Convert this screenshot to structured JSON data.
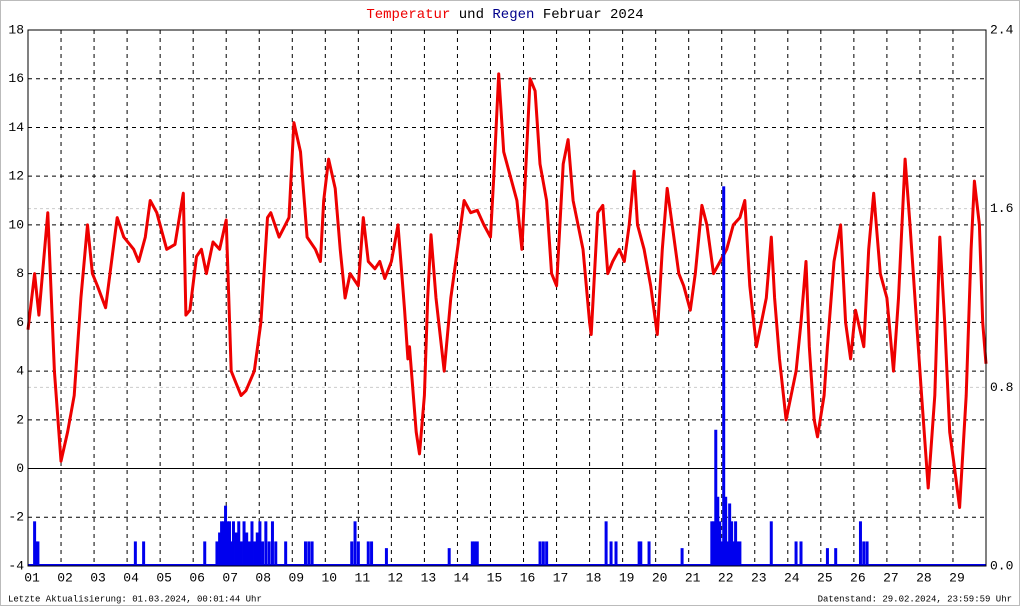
{
  "chart_data": {
    "type": "line",
    "title_connector": "und",
    "title_suffix": "Februar 2024",
    "categories": [
      "01",
      "02",
      "03",
      "04",
      "05",
      "06",
      "07",
      "08",
      "09",
      "10",
      "11",
      "12",
      "13",
      "14",
      "15",
      "16",
      "17",
      "18",
      "19",
      "20",
      "21",
      "22",
      "23",
      "24",
      "25",
      "26",
      "27",
      "28",
      "29"
    ],
    "xlim": [
      1,
      30
    ],
    "ylim": [
      -4,
      18
    ],
    "yticks": [
      -4,
      -2,
      0,
      2,
      4,
      6,
      8,
      10,
      12,
      14,
      16,
      18
    ],
    "y2lim": [
      0,
      2.4
    ],
    "y2ticks": [
      {
        "value": 0,
        "label": "0.0"
      },
      0.8,
      1.6,
      2.4
    ],
    "grid": true,
    "series": [
      {
        "name": "Temperatur",
        "color": "#ee0000",
        "x": [
          1.0,
          1.2,
          1.33,
          1.6,
          1.8,
          2.0,
          2.2,
          2.4,
          2.6,
          2.8,
          2.95,
          3.1,
          3.35,
          3.7,
          3.9,
          4.2,
          4.35,
          4.55,
          4.7,
          4.9,
          5.2,
          5.45,
          5.7,
          5.78,
          5.9,
          6.1,
          6.25,
          6.4,
          6.6,
          6.8,
          7.0,
          7.15,
          7.3,
          7.45,
          7.6,
          7.85,
          8.05,
          8.25,
          8.35,
          8.6,
          8.9,
          9.05,
          9.25,
          9.45,
          9.7,
          9.85,
          9.95,
          10.1,
          10.3,
          10.45,
          10.6,
          10.75,
          11.0,
          11.15,
          11.3,
          11.5,
          11.65,
          11.8,
          12.0,
          12.2,
          12.4,
          12.5,
          12.55,
          12.75,
          12.85,
          13.0,
          13.1,
          13.2,
          13.35,
          13.6,
          13.8,
          13.95,
          14.2,
          14.4,
          14.6,
          14.8,
          15.0,
          15.1,
          15.25,
          15.4,
          15.6,
          15.8,
          15.95,
          16.2,
          16.35,
          16.5,
          16.7,
          16.85,
          17.0,
          17.2,
          17.35,
          17.5,
          17.8,
          18.0,
          18.05,
          18.25,
          18.4,
          18.55,
          18.7,
          18.9,
          19.05,
          19.2,
          19.35,
          19.45,
          19.65,
          19.85,
          20.05,
          20.2,
          20.35,
          20.5,
          20.7,
          20.85,
          21.05,
          21.2,
          21.4,
          21.55,
          21.75,
          21.95,
          22.15,
          22.35,
          22.55,
          22.7,
          22.85,
          23.05,
          23.2,
          23.35,
          23.5,
          23.6,
          23.75,
          23.95,
          24.1,
          24.25,
          24.4,
          24.55,
          24.65,
          24.8,
          24.9,
          25.1,
          25.2,
          25.4,
          25.6,
          25.75,
          25.9,
          26.05,
          26.3,
          26.45,
          26.6,
          26.8,
          27.0,
          27.2,
          27.35,
          27.55,
          27.7,
          27.9,
          28.05,
          28.25,
          28.45,
          28.6,
          28.75,
          28.9,
          29.05,
          29.2,
          29.4,
          29.55,
          29.65,
          29.8,
          29.9,
          30.0
        ],
        "values": [
          5.7,
          8,
          6.3,
          10.5,
          4,
          0.3,
          1.5,
          3,
          7,
          10,
          8,
          7.5,
          6.6,
          10.3,
          9.5,
          9,
          8.5,
          9.5,
          11,
          10.5,
          9,
          9.2,
          11.3,
          6.3,
          6.5,
          8.7,
          9,
          8,
          9.3,
          9,
          10.2,
          4,
          3.5,
          3,
          3.2,
          4,
          6,
          10.3,
          10.5,
          9.5,
          10.3,
          14.2,
          13,
          9.5,
          9,
          8.5,
          11,
          12.7,
          11.5,
          9,
          7,
          8,
          7.5,
          10.3,
          8.5,
          8.2,
          8.5,
          7.8,
          8.5,
          10,
          6.5,
          4.5,
          5,
          1.5,
          0.6,
          3,
          7,
          9.6,
          7,
          4,
          7,
          8.5,
          11,
          10.5,
          10.6,
          10,
          9.5,
          12,
          16.2,
          13,
          12,
          11,
          9,
          16,
          15.5,
          12.5,
          11,
          8,
          7.5,
          12.5,
          13.5,
          11,
          9,
          6,
          5.5,
          10.5,
          10.8,
          8,
          8.5,
          9,
          8.5,
          10,
          12.2,
          10,
          9,
          7.5,
          5.5,
          9,
          11.5,
          10,
          8,
          7.5,
          6.5,
          8,
          10.8,
          10,
          8,
          8.5,
          9,
          10,
          10.3,
          11,
          7.5,
          5,
          6,
          7,
          9.5,
          7,
          4.5,
          2,
          3,
          4,
          6,
          8.5,
          5,
          2,
          1.3,
          3,
          5,
          8.5,
          10,
          6,
          4.5,
          6.5,
          5,
          9,
          11.3,
          8,
          7,
          4,
          7,
          12.7,
          10,
          6,
          3,
          -0.8,
          3,
          9.5,
          6,
          1.5,
          0,
          -1.6,
          3,
          9,
          11.8,
          10,
          6,
          4.3
        ]
      },
      {
        "name": "Regen",
        "color": "#0000ee",
        "type": "bar",
        "axis": "y2",
        "x": [
          1.2,
          1.25,
          1.3,
          4.25,
          4.5,
          6.35,
          6.72,
          6.8,
          6.86,
          6.92,
          6.98,
          7.04,
          7.1,
          7.16,
          7.22,
          7.3,
          7.38,
          7.46,
          7.54,
          7.62,
          7.7,
          7.78,
          7.86,
          7.94,
          8.02,
          8.1,
          8.2,
          8.3,
          8.4,
          8.5,
          8.8,
          9.4,
          9.5,
          9.6,
          10.8,
          10.9,
          11.0,
          11.3,
          11.4,
          11.85,
          13.75,
          14.45,
          14.52,
          14.6,
          16.5,
          16.6,
          16.7,
          18.5,
          18.65,
          18.8,
          19.5,
          19.55,
          19.8,
          20.8,
          21.7,
          21.76,
          21.82,
          21.88,
          21.94,
          22.0,
          22.06,
          22.12,
          22.18,
          22.24,
          22.3,
          22.36,
          22.42,
          22.48,
          22.55,
          23.5,
          24.25,
          24.4,
          25.2,
          25.45,
          26.2,
          26.3,
          26.4
        ],
        "values": [
          0.2,
          0.11,
          0.11,
          0.11,
          0.11,
          0.11,
          0.11,
          0.15,
          0.2,
          0.2,
          0.27,
          0.2,
          0.2,
          0.11,
          0.2,
          0.15,
          0.2,
          0.11,
          0.2,
          0.15,
          0.11,
          0.2,
          0.11,
          0.15,
          0.2,
          0.11,
          0.2,
          0.11,
          0.2,
          0.11,
          0.11,
          0.11,
          0.11,
          0.11,
          0.11,
          0.2,
          0.11,
          0.11,
          0.11,
          0.08,
          0.08,
          0.11,
          0.11,
          0.11,
          0.11,
          0.11,
          0.11,
          0.2,
          0.11,
          0.11,
          0.11,
          0.11,
          0.11,
          0.08,
          0.2,
          0.2,
          0.61,
          0.31,
          0.2,
          0.11,
          1.7,
          0.31,
          0.11,
          0.28,
          0.2,
          0.11,
          0.2,
          0.11,
          0.11,
          0.2,
          0.11,
          0.11,
          0.08,
          0.08,
          0.2,
          0.11,
          0.11
        ]
      }
    ]
  },
  "footer": {
    "left": "Letzte Aktualisierung: 01.03.2024, 00:01:44 Uhr",
    "right": "Datenstand: 29.02.2024, 23:59:59 Uhr"
  }
}
